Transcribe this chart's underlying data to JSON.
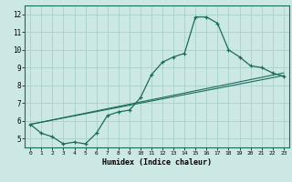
{
  "xlabel": "Humidex (Indice chaleur)",
  "bg_color": "#cce8e5",
  "line_color": "#1a6b5a",
  "grid_color": "#aacfcc",
  "xlim": [
    -0.5,
    23.5
  ],
  "ylim": [
    4.5,
    12.5
  ],
  "xticks": [
    0,
    1,
    2,
    3,
    4,
    5,
    6,
    7,
    8,
    9,
    10,
    11,
    12,
    13,
    14,
    15,
    16,
    17,
    18,
    19,
    20,
    21,
    22,
    23
  ],
  "yticks": [
    5,
    6,
    7,
    8,
    9,
    10,
    11,
    12
  ],
  "curve_x": [
    0,
    1,
    2,
    3,
    4,
    5,
    6,
    7,
    8,
    9,
    10,
    11,
    12,
    13,
    14,
    15,
    16,
    17,
    18,
    19,
    20,
    21,
    22,
    23
  ],
  "curve_y": [
    5.8,
    5.3,
    5.1,
    4.7,
    4.8,
    4.7,
    5.3,
    6.3,
    6.5,
    6.6,
    7.3,
    8.6,
    9.3,
    9.6,
    9.8,
    11.85,
    11.85,
    11.5,
    10.0,
    9.6,
    9.1,
    9.0,
    8.7,
    8.5
  ],
  "line1_x": [
    0,
    23
  ],
  "line1_y": [
    5.8,
    8.55
  ],
  "line2_x": [
    0,
    23
  ],
  "line2_y": [
    5.8,
    8.7
  ]
}
